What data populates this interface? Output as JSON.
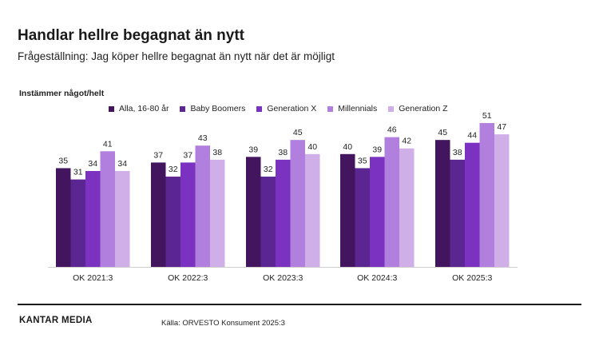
{
  "title": "Handlar hellre begagnat än nytt",
  "subtitle": "Frågeställning: Jag köper hellre begagnat än nytt när det är möjligt",
  "brand": "KANTAR MEDIA",
  "source": "Källa: ORVESTO Konsument 2025:3",
  "chart_data": {
    "type": "bar",
    "title": "Handlar hellre begagnat än nytt",
    "subtitle": "Frågeställning: Jag köper hellre begagnat än nytt när det är möjligt",
    "ylabel": "Instämmer något/helt",
    "xlabel": "",
    "ylim": [
      0,
      60
    ],
    "grid": false,
    "legend_position": "top",
    "categories": [
      "OK 2021:3",
      "OK 2022:3",
      "OK 2023:3",
      "OK 2024:3",
      "OK 2025:3"
    ],
    "series": [
      {
        "name": "Alla, 16-80 år",
        "color": "#43155f",
        "values": [
          35,
          37,
          39,
          40,
          45
        ]
      },
      {
        "name": "Baby Boomers",
        "color": "#5b2592",
        "values": [
          31,
          32,
          32,
          35,
          38
        ]
      },
      {
        "name": "Generation X",
        "color": "#7b32c0",
        "values": [
          34,
          37,
          38,
          39,
          44
        ]
      },
      {
        "name": "Millennials",
        "color": "#b17fde",
        "values": [
          41,
          43,
          45,
          46,
          51
        ]
      },
      {
        "name": "Generation Z",
        "color": "#d0aee8",
        "values": [
          34,
          38,
          40,
          42,
          47
        ]
      }
    ]
  }
}
